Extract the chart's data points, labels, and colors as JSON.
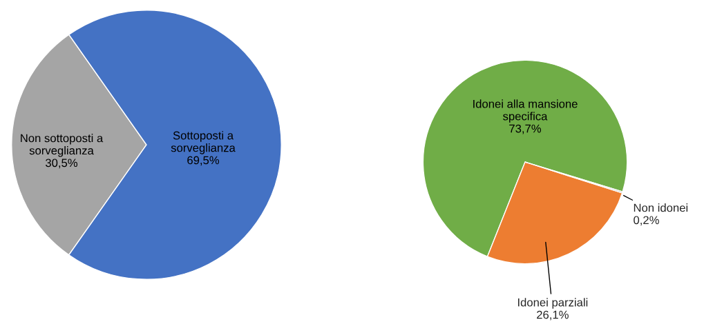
{
  "chart_data": [
    {
      "type": "pie",
      "categories": [
        "Non sottoposti a\nsorveglianza",
        "Sottoposti a\nsorveglianza"
      ],
      "values": [
        30.5,
        69.5
      ],
      "colors": [
        "#a5a5a5",
        "#4472c4"
      ],
      "value_labels": [
        "30,5%",
        "69,5%"
      ]
    },
    {
      "type": "pie",
      "categories": [
        "Idonei alla mansione\nspecifica",
        "Idonei parziali",
        "Non idonei"
      ],
      "values": [
        73.7,
        26.1,
        0.2
      ],
      "colors": [
        "#70ad47",
        "#ed7d31",
        "#a5a5a5"
      ],
      "value_labels": [
        "73,7%",
        "26,1%",
        "0,2%"
      ]
    }
  ]
}
